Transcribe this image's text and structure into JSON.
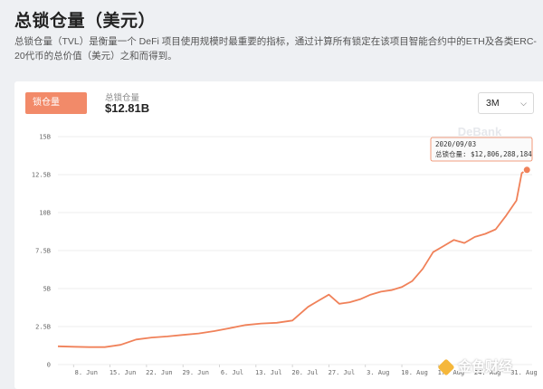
{
  "page": {
    "title": "总锁仓量（美元）",
    "description": "总锁仓量（TVL）是衡量一个 DeFi 项目使用规模时最重要的指标，通过计算所有锁定在该项目智能合约中的ETH及各类ERC-20代币的总价值（美元）之和而得到。"
  },
  "card": {
    "tab_label": "锁仓量",
    "metric_label": "总锁仓量",
    "metric_value": "$12.81B",
    "range_value": "3M"
  },
  "watermark": "DeBank",
  "brand": "金色财经",
  "tooltip": {
    "date": "2020/09/03",
    "text": "总锁仓量: $12,806,288,184"
  },
  "colors": {
    "line": "#f08159",
    "accent": "#f28a69"
  },
  "chart_data": {
    "type": "line",
    "title": "",
    "xlabel": "",
    "ylabel": "",
    "ylim": [
      0,
      15
    ],
    "y_unit": "B USD",
    "yticks": [
      0,
      2.5,
      5,
      7.5,
      10,
      12.5,
      15
    ],
    "ytick_labels": [
      "0",
      "2.5B",
      "5B",
      "7.5B",
      "10B",
      "12.5B",
      "15B"
    ],
    "xticks": [
      "2020-06-08",
      "2020-06-15",
      "2020-06-22",
      "2020-06-29",
      "2020-07-06",
      "2020-07-13",
      "2020-07-20",
      "2020-07-27",
      "2020-08-03",
      "2020-08-10",
      "2020-08-17",
      "2020-08-24",
      "2020-08-31"
    ],
    "xtick_labels": [
      "8. Jun",
      "15. Jun",
      "22. Jun",
      "29. Jun",
      "6. Jul",
      "13. Jul",
      "20. Jul",
      "27. Jul",
      "3. Aug",
      "10. Aug",
      "17. Aug",
      "24. Aug",
      "31. Aug"
    ],
    "grid": "horizontal",
    "series": [
      {
        "x": [
          "2020-06-05",
          "2020-06-08",
          "2020-06-11",
          "2020-06-14",
          "2020-06-17",
          "2020-06-20",
          "2020-06-23",
          "2020-06-26",
          "2020-06-29",
          "2020-07-02",
          "2020-07-05",
          "2020-07-08",
          "2020-07-11",
          "2020-07-14",
          "2020-07-17",
          "2020-07-20",
          "2020-07-23",
          "2020-07-25",
          "2020-07-27",
          "2020-07-29",
          "2020-07-31",
          "2020-08-02",
          "2020-08-04",
          "2020-08-06",
          "2020-08-08",
          "2020-08-10",
          "2020-08-12",
          "2020-08-14",
          "2020-08-16",
          "2020-08-18",
          "2020-08-20",
          "2020-08-22",
          "2020-08-24",
          "2020-08-26",
          "2020-08-28",
          "2020-08-30",
          "2020-09-01",
          "2020-09-02",
          "2020-09-03"
        ],
        "values": [
          1.2,
          1.17,
          1.15,
          1.15,
          1.3,
          1.65,
          1.78,
          1.85,
          1.95,
          2.05,
          2.2,
          2.4,
          2.6,
          2.7,
          2.75,
          2.9,
          3.8,
          4.2,
          4.6,
          4.0,
          4.1,
          4.3,
          4.6,
          4.8,
          4.9,
          5.1,
          5.5,
          6.3,
          7.4,
          7.8,
          8.2,
          8.0,
          8.4,
          8.6,
          8.9,
          9.8,
          10.8,
          12.6,
          12.81
        ]
      }
    ]
  }
}
